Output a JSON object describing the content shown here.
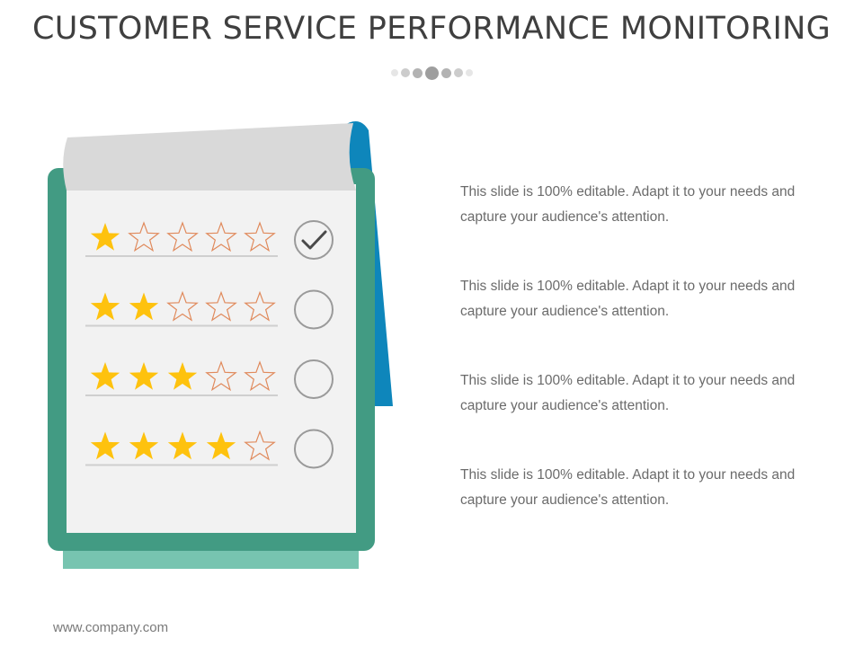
{
  "slide": {
    "title": "CUSTOMER SERVICE PERFORMANCE MONITORING",
    "footer": "www.company.com"
  },
  "rating_rows": [
    {
      "filled_stars": 1,
      "total_stars": 5,
      "checked": true
    },
    {
      "filled_stars": 2,
      "total_stars": 5,
      "checked": false
    },
    {
      "filled_stars": 3,
      "total_stars": 5,
      "checked": false
    },
    {
      "filled_stars": 4,
      "total_stars": 5,
      "checked": false
    }
  ],
  "descriptions": [
    {
      "text": "This slide is 100% editable. Adapt it to your needs and capture your audience's attention."
    },
    {
      "text": "This slide is 100% editable. Adapt it to your needs and capture your audience's attention."
    },
    {
      "text": "This slide is 100% editable. Adapt it to your needs and capture your audience's attention."
    },
    {
      "text": "This slide is 100% editable. Adapt it to your needs and capture your audience's attention."
    }
  ],
  "colors": {
    "title": "#3f3f3f",
    "clipboard_frame": "#429b83",
    "clipboard_base": "#77c4b0",
    "paper": "#f2f2f2",
    "page_curl": "#d9d9d9",
    "page_back": "#0e86bb",
    "star_filled": "#fec20e",
    "star_outline": "#e08a5c",
    "circle": "#9a9a9a",
    "text": "#6b6b6b"
  }
}
